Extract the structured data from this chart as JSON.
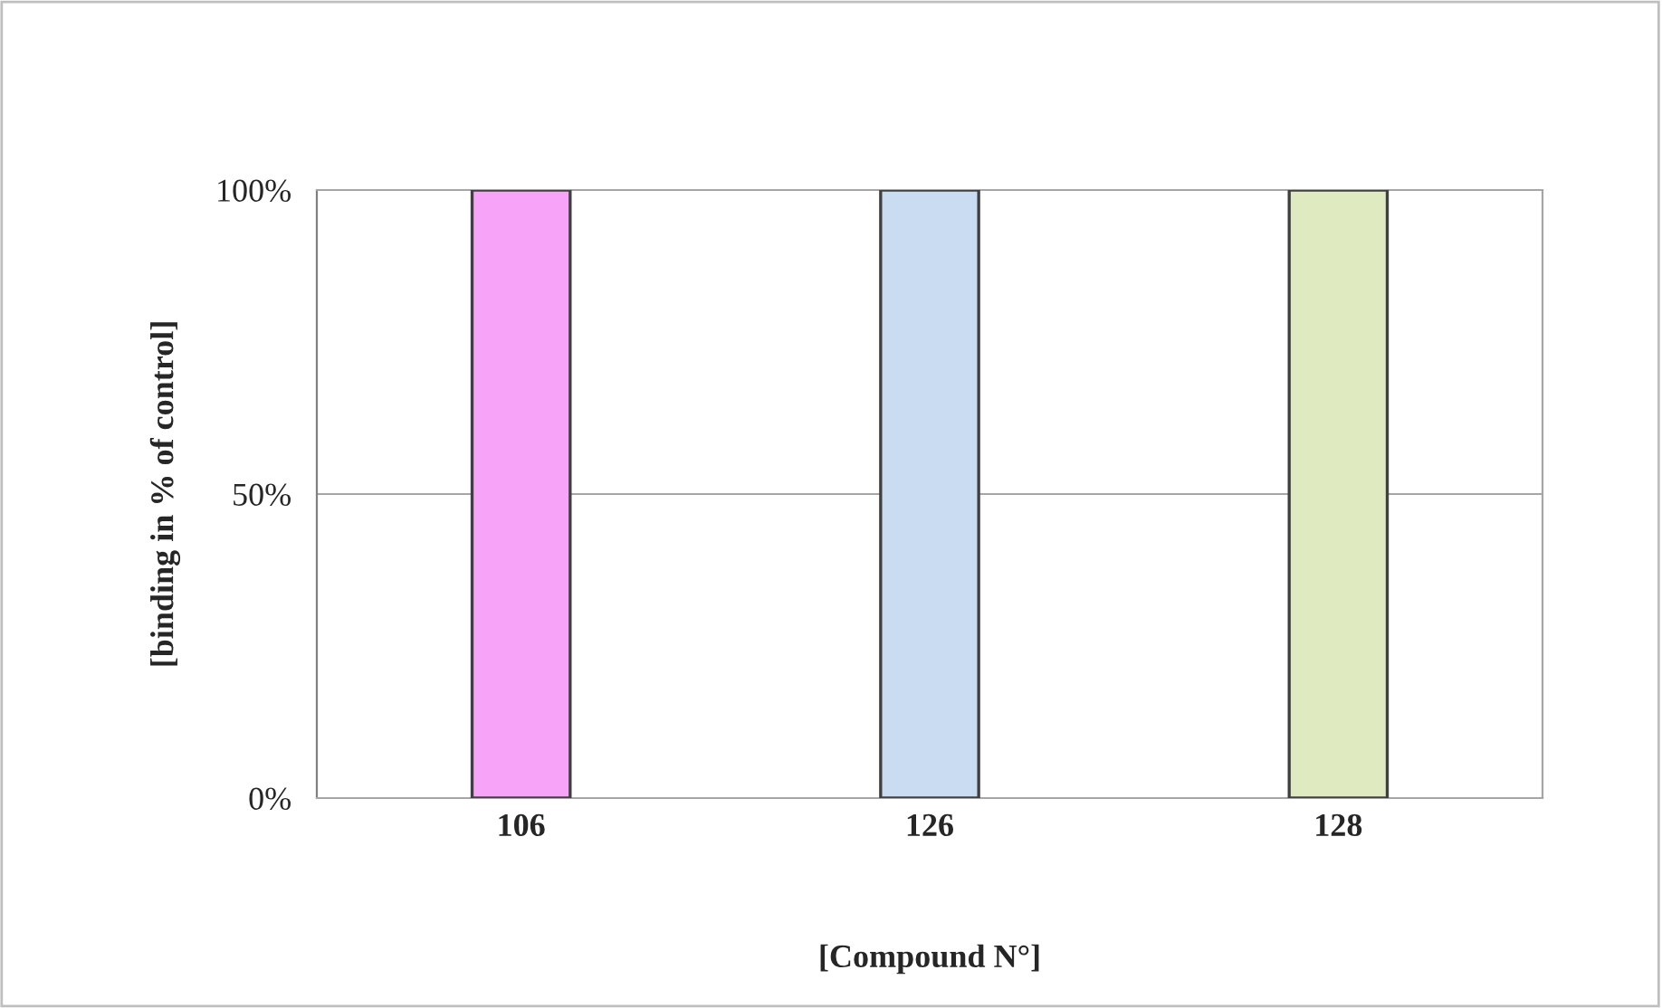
{
  "chart_data": {
    "type": "bar",
    "categories": [
      "106",
      "126",
      "128"
    ],
    "values": [
      100,
      100,
      100
    ],
    "colors": [
      "#f7a3f7",
      "#c9dcf2",
      "#dfeac0"
    ],
    "ylim": [
      0,
      100
    ],
    "yticks": [
      {
        "value": 0,
        "label": "0%"
      },
      {
        "value": 50,
        "label": "50%"
      },
      {
        "value": 100,
        "label": "100%"
      }
    ],
    "ylabel": "[binding in % of control]",
    "xlabel": "[Compound N°]",
    "grid": "y",
    "legend": false
  }
}
